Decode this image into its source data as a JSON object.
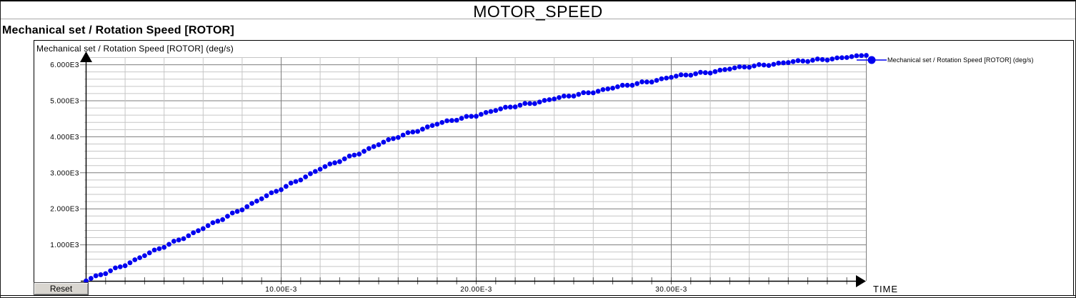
{
  "header": {
    "title": "MOTOR_SPEED",
    "signal_heading": "Mechanical set / Rotation Speed [ROTOR]"
  },
  "controls": {
    "reset_label": "Reset"
  },
  "colors": {
    "series": "#0000f0",
    "grid_minor": "#c6c6c6",
    "grid_major": "#7d7d7d",
    "axis": "#000000",
    "title_separator": "#a8a8a8",
    "button_face": "#d9d6d0"
  },
  "chart_data": {
    "type": "scatter",
    "title": "MOTOR_SPEED",
    "xlabel": "TIME",
    "ylabel": "Mechanical set / Rotation Speed [ROTOR] (deg/s)",
    "legend": {
      "label": "Mechanical set / Rotation Speed [ROTOR] (deg/s)",
      "position": "right",
      "marker": "circle",
      "color": "#0000f0"
    },
    "xlim_ms": [
      0,
      40
    ],
    "ylim": [
      0,
      6200
    ],
    "grid": {
      "minor_x_ms": 2,
      "major_x_ms": 10,
      "axis_tick_x_ms": 1,
      "minor_y": 200,
      "major_y": 1000,
      "grid_on": true
    },
    "x_ticks": [
      {
        "t_ms": 10,
        "label": "10.00E-3"
      },
      {
        "t_ms": 20,
        "label": "20.00E-3"
      },
      {
        "t_ms": 30,
        "label": "30.00E-3"
      }
    ],
    "y_ticks": [
      {
        "v": 1000,
        "label": "1.000E3"
      },
      {
        "v": 2000,
        "label": "2.000E3"
      },
      {
        "v": 3000,
        "label": "3.000E3"
      },
      {
        "v": 4000,
        "label": "4.000E3"
      },
      {
        "v": 5000,
        "label": "5.000E3"
      },
      {
        "v": 6000,
        "label": "6.000E3"
      }
    ],
    "series": [
      {
        "name": "Mechanical set / Rotation Speed [ROTOR] (deg/s)",
        "color": "#0000f0",
        "marker": "dot",
        "points_t_ms_v": [
          [
            0,
            0
          ],
          [
            0.5,
            140
          ],
          [
            1,
            200
          ],
          [
            1.5,
            360
          ],
          [
            2,
            420
          ],
          [
            2.5,
            585
          ],
          [
            3,
            700
          ],
          [
            3.5,
            855
          ],
          [
            4,
            930
          ],
          [
            4.5,
            1100
          ],
          [
            5,
            1170
          ],
          [
            5.5,
            1335
          ],
          [
            6,
            1450
          ],
          [
            6.5,
            1615
          ],
          [
            7,
            1700
          ],
          [
            7.5,
            1885
          ],
          [
            8,
            1970
          ],
          [
            8.5,
            2150
          ],
          [
            9,
            2280
          ],
          [
            9.5,
            2445
          ],
          [
            10,
            2530
          ],
          [
            10.5,
            2715
          ],
          [
            11,
            2800
          ],
          [
            11.5,
            2975
          ],
          [
            12,
            3100
          ],
          [
            12.5,
            3245
          ],
          [
            13,
            3310
          ],
          [
            13.5,
            3465
          ],
          [
            14,
            3520
          ],
          [
            14.5,
            3675
          ],
          [
            15,
            3780
          ],
          [
            15.5,
            3920
          ],
          [
            16,
            3980
          ],
          [
            16.5,
            4115
          ],
          [
            17,
            4150
          ],
          [
            17.5,
            4275
          ],
          [
            18,
            4350
          ],
          [
            18.5,
            4445
          ],
          [
            19,
            4460
          ],
          [
            19.5,
            4565
          ],
          [
            20,
            4570
          ],
          [
            20.5,
            4675
          ],
          [
            21,
            4730
          ],
          [
            21.5,
            4820
          ],
          [
            22,
            4830
          ],
          [
            22.5,
            4925
          ],
          [
            23,
            4920
          ],
          [
            23.5,
            5010
          ],
          [
            24,
            5050
          ],
          [
            24.5,
            5130
          ],
          [
            25,
            5130
          ],
          [
            25.5,
            5225
          ],
          [
            26,
            5220
          ],
          [
            26.5,
            5310
          ],
          [
            27,
            5350
          ],
          [
            27.5,
            5430
          ],
          [
            28,
            5430
          ],
          [
            28.5,
            5525
          ],
          [
            29,
            5520
          ],
          [
            29.5,
            5610
          ],
          [
            30,
            5650
          ],
          [
            30.5,
            5720
          ],
          [
            31,
            5710
          ],
          [
            31.5,
            5790
          ],
          [
            32,
            5770
          ],
          [
            32.5,
            5850
          ],
          [
            33,
            5880
          ],
          [
            33.5,
            5945
          ],
          [
            34,
            5930
          ],
          [
            34.5,
            6005
          ],
          [
            35,
            5980
          ],
          [
            35.5,
            6045
          ],
          [
            36,
            6060
          ],
          [
            36.5,
            6115
          ],
          [
            37,
            6090
          ],
          [
            37.5,
            6160
          ],
          [
            38,
            6130
          ],
          [
            38.5,
            6190
          ],
          [
            39,
            6200
          ],
          [
            39.5,
            6250
          ],
          [
            40,
            6260
          ]
        ]
      }
    ]
  }
}
